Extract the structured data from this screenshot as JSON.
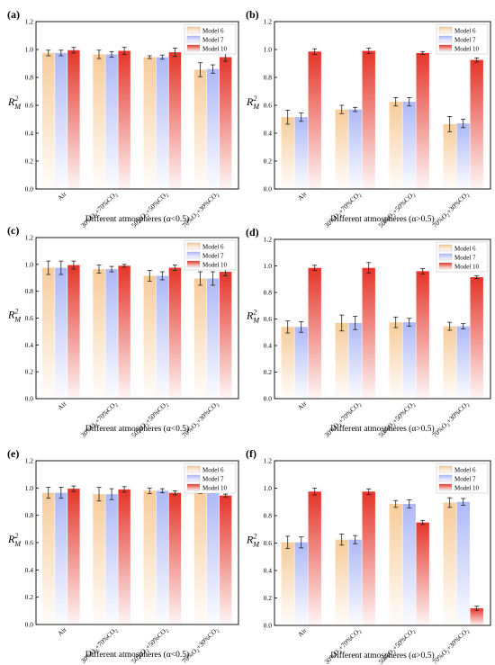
{
  "figure": {
    "legend_entries": [
      "Model 6",
      "Model 7",
      "Model 10"
    ],
    "x_label_low": "Different atmospheres (α<0.5)",
    "x_label_high": "Different atmospheres (α>0.5)",
    "series_colors": {
      "Model 6": "#f6c995",
      "Model 7": "#a9b5f6",
      "Model 10": "#e3291d"
    },
    "y_label_main": "R",
    "y_label_sub": "M",
    "y_label_sup": "2"
  },
  "chart_data": [
    {
      "panel": "(a)",
      "type": "bar",
      "categories": [
        "Air",
        "30%O2+70%CO2",
        "50%O2+50%CO2",
        "70%O2+30%CO2"
      ],
      "series": [
        {
          "name": "Model 6",
          "values": [
            0.975,
            0.965,
            0.945,
            0.855
          ],
          "errors": [
            0.02,
            0.03,
            0.01,
            0.05
          ]
        },
        {
          "name": "Model 7",
          "values": [
            0.975,
            0.965,
            0.945,
            0.86
          ],
          "errors": [
            0.02,
            0.02,
            0.015,
            0.03
          ]
        },
        {
          "name": "Model 10",
          "values": [
            0.995,
            0.99,
            0.98,
            0.945
          ],
          "errors": [
            0.02,
            0.025,
            0.03,
            0.03
          ]
        }
      ],
      "ylim": [
        0,
        1.2
      ],
      "yticks": [
        0.0,
        0.2,
        0.4,
        0.6,
        0.8,
        1.0,
        1.2
      ],
      "xlabel": "Different atmospheres (α<0.5)",
      "legend": "top-right"
    },
    {
      "panel": "(b)",
      "type": "bar",
      "categories": [
        "Air",
        "30%O2+70%CO2",
        "50%O2+50%CO2",
        "70%O2+30%CO2"
      ],
      "series": [
        {
          "name": "Model 6",
          "values": [
            0.515,
            0.57,
            0.625,
            0.465
          ],
          "errors": [
            0.05,
            0.03,
            0.03,
            0.055
          ]
        },
        {
          "name": "Model 7",
          "values": [
            0.515,
            0.57,
            0.625,
            0.47
          ],
          "errors": [
            0.03,
            0.015,
            0.03,
            0.03
          ]
        },
        {
          "name": "Model 10",
          "values": [
            0.985,
            0.99,
            0.975,
            0.925
          ],
          "errors": [
            0.02,
            0.02,
            0.01,
            0.015
          ]
        }
      ],
      "ylim": [
        0,
        1.2
      ],
      "yticks": [
        0.0,
        0.2,
        0.4,
        0.6,
        0.8,
        1.0,
        1.2
      ],
      "xlabel": "Different atmospheres (α>0.5)",
      "legend": "top-right"
    },
    {
      "panel": "(c)",
      "type": "bar",
      "categories": [
        "Air",
        "30%O2+70%CO2",
        "50%O2+50%CO2",
        "70%O2+30%CO2"
      ],
      "series": [
        {
          "name": "Model 6",
          "values": [
            0.975,
            0.965,
            0.915,
            0.895
          ],
          "errors": [
            0.05,
            0.03,
            0.04,
            0.05
          ]
        },
        {
          "name": "Model 7",
          "values": [
            0.975,
            0.965,
            0.915,
            0.895
          ],
          "errors": [
            0.05,
            0.02,
            0.03,
            0.05
          ]
        },
        {
          "name": "Model 10",
          "values": [
            0.995,
            0.99,
            0.975,
            0.945
          ],
          "errors": [
            0.03,
            0.01,
            0.02,
            0.03
          ]
        }
      ],
      "ylim": [
        0,
        1.2
      ],
      "yticks": [
        0.0,
        0.2,
        0.4,
        0.6,
        0.8,
        1.0,
        1.2
      ],
      "xlabel": "Different atmospheres (α<0.5)",
      "legend": "top-right"
    },
    {
      "panel": "(d)",
      "type": "bar",
      "categories": [
        "Air",
        "30%O2+70%CO2",
        "50%O2+50%CO2",
        "70%O2+30%CO2"
      ],
      "series": [
        {
          "name": "Model 6",
          "values": [
            0.54,
            0.57,
            0.575,
            0.545
          ],
          "errors": [
            0.045,
            0.06,
            0.04,
            0.03
          ]
        },
        {
          "name": "Model 7",
          "values": [
            0.54,
            0.57,
            0.575,
            0.545
          ],
          "errors": [
            0.04,
            0.05,
            0.03,
            0.02
          ]
        },
        {
          "name": "Model 10",
          "values": [
            0.985,
            0.985,
            0.96,
            0.915
          ],
          "errors": [
            0.02,
            0.04,
            0.02,
            0.01
          ]
        }
      ],
      "ylim": [
        0,
        1.2
      ],
      "yticks": [
        0.0,
        0.2,
        0.4,
        0.6,
        0.8,
        1.0,
        1.2
      ],
      "xlabel": "Different atmospheres (α>0.5)",
      "legend": "top-right"
    },
    {
      "panel": "(e)",
      "type": "bar",
      "categories": [
        "Air",
        "30%O2+70%CO2",
        "50%O2+50%CO2",
        "70%O2+30%CO2"
      ],
      "series": [
        {
          "name": "Model 6",
          "values": [
            0.965,
            0.955,
            0.98,
            0.98
          ],
          "errors": [
            0.04,
            0.05,
            0.02,
            0.02
          ]
        },
        {
          "name": "Model 7",
          "values": [
            0.965,
            0.955,
            0.98,
            0.98
          ],
          "errors": [
            0.04,
            0.04,
            0.015,
            0.015
          ]
        },
        {
          "name": "Model 10",
          "values": [
            0.995,
            0.99,
            0.965,
            0.945
          ],
          "errors": [
            0.02,
            0.02,
            0.015,
            0.01
          ]
        }
      ],
      "ylim": [
        0,
        1.2
      ],
      "yticks": [
        0.0,
        0.2,
        0.4,
        0.6,
        0.8,
        1.0,
        1.2
      ],
      "xlabel": "Different atmospheres (α<0.5)",
      "legend": "top-right"
    },
    {
      "panel": "(f)",
      "type": "bar",
      "categories": [
        "Air",
        "30%O2+70%CO2",
        "50%O2+50%CO2",
        "70%O2+30%CO2"
      ],
      "series": [
        {
          "name": "Model 6",
          "values": [
            0.605,
            0.625,
            0.885,
            0.895
          ],
          "errors": [
            0.045,
            0.04,
            0.025,
            0.035
          ]
        },
        {
          "name": "Model 7",
          "values": [
            0.605,
            0.625,
            0.885,
            0.9
          ],
          "errors": [
            0.04,
            0.03,
            0.03,
            0.025
          ]
        },
        {
          "name": "Model 10",
          "values": [
            0.975,
            0.975,
            0.75,
            0.125
          ],
          "errors": [
            0.025,
            0.02,
            0.015,
            0.015
          ]
        }
      ],
      "ylim": [
        0,
        1.2
      ],
      "yticks": [
        0.0,
        0.2,
        0.4,
        0.6,
        0.8,
        1.0,
        1.2
      ],
      "xlabel": "Different atmospheres (α>0.5)",
      "legend": "top-right"
    }
  ]
}
